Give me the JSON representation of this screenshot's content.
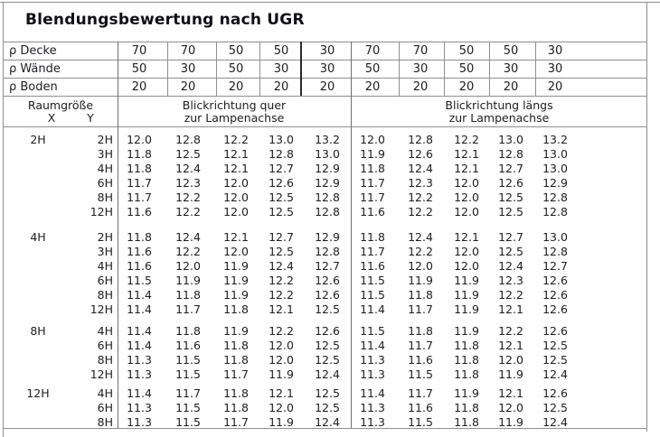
{
  "title": "Blendungsbewertung nach UGR",
  "column_headers": {
    "room_size": "Raumgröße",
    "x_label": "X",
    "y_label": "Y",
    "quer_line1": "Blickrichtung quer",
    "quer_line2": "zur Lampenachse",
    "laengs_line1": "Blickrichtung längs",
    "laengs_line2": "zur Lampenachse"
  },
  "reflectance_rows": [
    {
      "label": "ρ Decke",
      "quer": [
        "70",
        "70",
        "50",
        "50",
        "30"
      ],
      "laengs": [
        "70",
        "70",
        "50",
        "50",
        "30"
      ]
    },
    {
      "label": "ρ Wände",
      "quer": [
        "50",
        "30",
        "50",
        "30",
        "30"
      ],
      "laengs": [
        "50",
        "30",
        "50",
        "30",
        "30"
      ]
    },
    {
      "label": "ρ Boden",
      "quer": [
        "20",
        "20",
        "20",
        "20",
        "20"
      ],
      "laengs": [
        "20",
        "20",
        "20",
        "20",
        "20"
      ]
    }
  ],
  "groups": [
    {
      "x": "2H",
      "rows": [
        {
          "y": "2H",
          "quer": [
            "12.0",
            "12.8",
            "12.2",
            "13.0",
            "13.2"
          ],
          "laengs": [
            "12.0",
            "12.8",
            "12.2",
            "13.0",
            "13.2"
          ]
        },
        {
          "y": "3H",
          "quer": [
            "11.8",
            "12.5",
            "12.1",
            "12.8",
            "13.0"
          ],
          "laengs": [
            "11.9",
            "12.6",
            "12.1",
            "12.8",
            "13.0"
          ]
        },
        {
          "y": "4H",
          "quer": [
            "11.8",
            "12.4",
            "12.1",
            "12.7",
            "12.9"
          ],
          "laengs": [
            "11.8",
            "12.4",
            "12.1",
            "12.7",
            "13.0"
          ]
        },
        {
          "y": "6H",
          "quer": [
            "11.7",
            "12.3",
            "12.0",
            "12.6",
            "12.9"
          ],
          "laengs": [
            "11.7",
            "12.3",
            "12.0",
            "12.6",
            "12.9"
          ]
        },
        {
          "y": "8H",
          "quer": [
            "11.7",
            "12.2",
            "12.0",
            "12.5",
            "12.8"
          ],
          "laengs": [
            "11.7",
            "12.2",
            "12.0",
            "12.5",
            "12.8"
          ]
        },
        {
          "y": "12H",
          "quer": [
            "11.6",
            "12.2",
            "12.0",
            "12.5",
            "12.8"
          ],
          "laengs": [
            "11.6",
            "12.2",
            "12.0",
            "12.5",
            "12.8"
          ]
        }
      ]
    },
    {
      "x": "4H",
      "rows": [
        {
          "y": "2H",
          "quer": [
            "11.8",
            "12.4",
            "12.1",
            "12.7",
            "12.9"
          ],
          "laengs": [
            "11.8",
            "12.4",
            "12.1",
            "12.7",
            "13.0"
          ]
        },
        {
          "y": "3H",
          "quer": [
            "11.6",
            "12.2",
            "12.0",
            "12.5",
            "12.8"
          ],
          "laengs": [
            "11.7",
            "12.2",
            "12.0",
            "12.5",
            "12.8"
          ]
        },
        {
          "y": "4H",
          "quer": [
            "11.6",
            "12.0",
            "11.9",
            "12.4",
            "12.7"
          ],
          "laengs": [
            "11.6",
            "12.0",
            "12.0",
            "12.4",
            "12.7"
          ]
        },
        {
          "y": "6H",
          "quer": [
            "11.5",
            "11.9",
            "11.9",
            "12.2",
            "12.6"
          ],
          "laengs": [
            "11.5",
            "11.9",
            "11.9",
            "12.3",
            "12.6"
          ]
        },
        {
          "y": "8H",
          "quer": [
            "11.4",
            "11.8",
            "11.9",
            "12.2",
            "12.6"
          ],
          "laengs": [
            "11.5",
            "11.8",
            "11.9",
            "12.2",
            "12.6"
          ]
        },
        {
          "y": "12H",
          "quer": [
            "11.4",
            "11.7",
            "11.8",
            "12.1",
            "12.5"
          ],
          "laengs": [
            "11.4",
            "11.7",
            "11.9",
            "12.1",
            "12.6"
          ]
        }
      ]
    },
    {
      "x": "8H",
      "rows": [
        {
          "y": "4H",
          "quer": [
            "11.4",
            "11.8",
            "11.9",
            "12.2",
            "12.6"
          ],
          "laengs": [
            "11.5",
            "11.8",
            "11.9",
            "12.2",
            "12.6"
          ]
        },
        {
          "y": "6H",
          "quer": [
            "11.4",
            "11.6",
            "11.8",
            "12.0",
            "12.5"
          ],
          "laengs": [
            "11.4",
            "11.7",
            "11.8",
            "12.1",
            "12.5"
          ]
        },
        {
          "y": "8H",
          "quer": [
            "11.3",
            "11.5",
            "11.8",
            "12.0",
            "12.5"
          ],
          "laengs": [
            "11.3",
            "11.6",
            "11.8",
            "12.0",
            "12.5"
          ]
        },
        {
          "y": "12H",
          "quer": [
            "11.3",
            "11.5",
            "11.7",
            "11.9",
            "12.4"
          ],
          "laengs": [
            "11.3",
            "11.5",
            "11.8",
            "11.9",
            "12.4"
          ]
        }
      ]
    },
    {
      "x": "12H",
      "rows": [
        {
          "y": "4H",
          "quer": [
            "11.4",
            "11.7",
            "11.8",
            "12.1",
            "12.5"
          ],
          "laengs": [
            "11.4",
            "11.7",
            "11.9",
            "12.1",
            "12.6"
          ]
        },
        {
          "y": "6H",
          "quer": [
            "11.3",
            "11.5",
            "11.8",
            "12.0",
            "12.5"
          ],
          "laengs": [
            "11.3",
            "11.6",
            "11.8",
            "12.0",
            "12.5"
          ]
        },
        {
          "y": "8H",
          "quer": [
            "11.3",
            "11.5",
            "11.7",
            "11.9",
            "12.4"
          ],
          "laengs": [
            "11.3",
            "11.5",
            "11.8",
            "11.9",
            "12.4"
          ]
        }
      ]
    }
  ]
}
